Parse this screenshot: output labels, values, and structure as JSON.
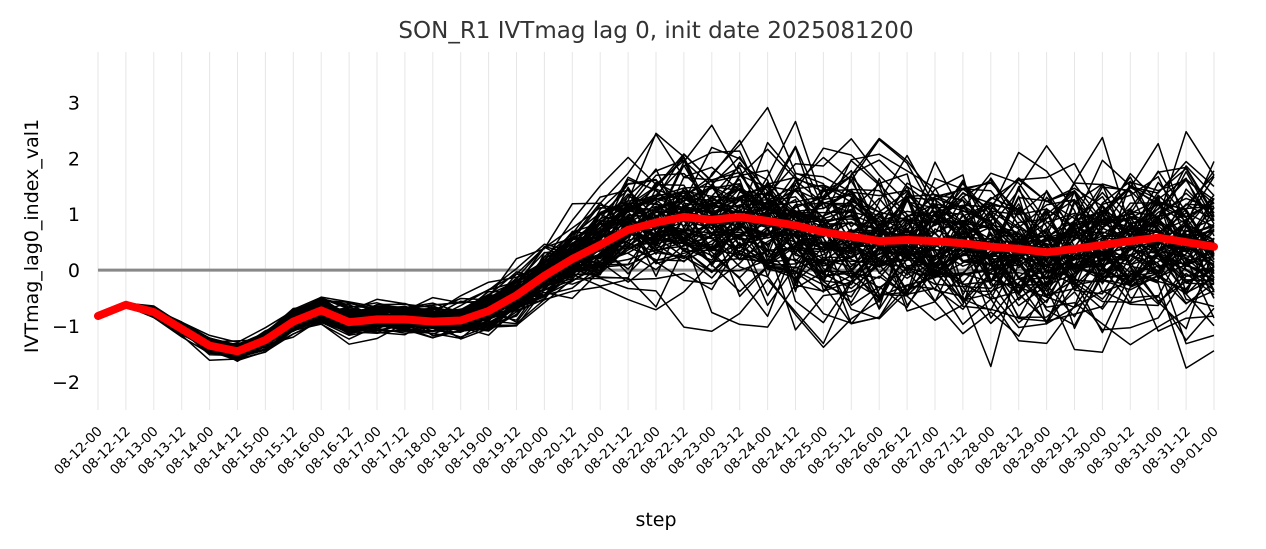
{
  "chart_data": {
    "type": "line",
    "title": "SON_R1 IVTmag lag 0, init date 2025081200",
    "xlabel": "step",
    "ylabel": "IVTmag_lag0_index_val1",
    "yticks": [
      -2,
      -1,
      0,
      1,
      2,
      3
    ],
    "ylim": [
      -2.5,
      3.9
    ],
    "grid": "vertical gridlines on x ticks only",
    "reference_line": {
      "y": 0,
      "color": "#888888"
    },
    "x": [
      "08-12-00",
      "08-12-12",
      "08-13-00",
      "08-13-12",
      "08-14-00",
      "08-14-12",
      "08-15-00",
      "08-15-12",
      "08-16-00",
      "08-16-12",
      "08-17-00",
      "08-17-12",
      "08-18-00",
      "08-18-12",
      "08-19-00",
      "08-19-12",
      "08-20-00",
      "08-20-12",
      "08-21-00",
      "08-21-12",
      "08-22-00",
      "08-22-12",
      "08-23-00",
      "08-23-12",
      "08-24-00",
      "08-24-12",
      "08-25-00",
      "08-25-12",
      "08-26-00",
      "08-26-12",
      "08-27-00",
      "08-27-12",
      "08-28-00",
      "08-28-12",
      "08-29-00",
      "08-29-12",
      "08-30-00",
      "08-30-12",
      "08-31-00",
      "08-31-12",
      "09-01-00"
    ],
    "ensemble": {
      "color": "#000000",
      "member_count": 100,
      "seed": 2025081200,
      "sigma_by_step": [
        0.0,
        0.02,
        0.05,
        0.08,
        0.1,
        0.1,
        0.12,
        0.15,
        0.16,
        0.17,
        0.18,
        0.18,
        0.18,
        0.2,
        0.25,
        0.3,
        0.36,
        0.42,
        0.5,
        0.58,
        0.65,
        0.72,
        0.78,
        0.82,
        0.85,
        0.87,
        0.88,
        0.88,
        0.88,
        0.87,
        0.87,
        0.88,
        0.88,
        0.88,
        0.88,
        0.88,
        0.9,
        0.92,
        0.92,
        0.92,
        0.92
      ]
    },
    "series": [
      {
        "values": [
          -0.82,
          -0.62,
          -0.75,
          -1.05,
          -1.35,
          -1.45,
          -1.25,
          -0.92,
          -0.72,
          -0.93,
          -0.88,
          -0.88,
          -0.92,
          -0.9,
          -0.73,
          -0.45,
          -0.1,
          0.2,
          0.45,
          0.72,
          0.85,
          0.95,
          0.9,
          0.95,
          0.88,
          0.8,
          0.68,
          0.6,
          0.52,
          0.54,
          0.52,
          0.48,
          0.42,
          0.38,
          0.32,
          0.38,
          0.45,
          0.52,
          0.58,
          0.5,
          0.42
        ],
        "color": "#ff0000"
      }
    ]
  }
}
